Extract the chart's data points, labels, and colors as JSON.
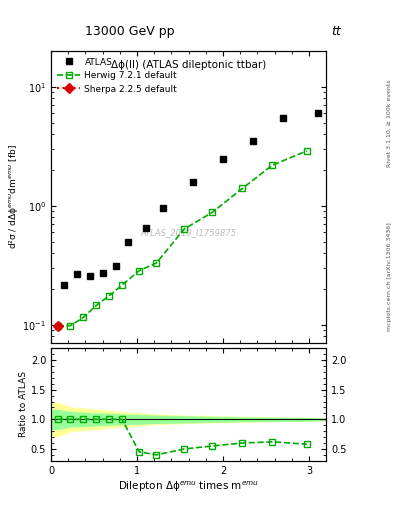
{
  "title_top": "13000 GeV pp",
  "title_top_right": "tt",
  "plot_title": "Δϕ(ll) (ATLAS dileptonic ttbar)",
  "watermark": "ATLAS_2019_I1759875",
  "right_label_top": "Rivet 3.1.10, ≥ 100k events",
  "right_label_bottom": "mcplots.cern.ch [arXiv:1306.3436]",
  "ylabel_main": "d²σ / dΔϕ dm [fb]",
  "ylabel_ratio": "Ratio to ATLAS",
  "xlabel": "Dilepton Δϕ times m",
  "atlas_x": [
    0.15,
    0.3,
    0.45,
    0.6,
    0.75,
    0.9,
    1.1,
    1.3,
    1.65,
    2.0,
    2.35,
    2.7,
    3.1
  ],
  "atlas_y": [
    0.215,
    0.265,
    0.255,
    0.27,
    0.31,
    0.5,
    0.65,
    0.95,
    1.6,
    2.5,
    3.5,
    5.5,
    6.0
  ],
  "herwig_x": [
    0.075,
    0.225,
    0.375,
    0.525,
    0.675,
    0.825,
    1.025,
    1.225,
    1.55,
    1.875,
    2.225,
    2.575,
    2.975
  ],
  "herwig_y": [
    0.098,
    0.098,
    0.115,
    0.145,
    0.175,
    0.215,
    0.285,
    0.33,
    0.64,
    0.88,
    1.4,
    2.2,
    2.9
  ],
  "sherpa_x": [
    0.075
  ],
  "sherpa_y": [
    0.098
  ],
  "ratio_herwig_x": [
    0.075,
    0.225,
    0.375,
    0.525,
    0.675,
    0.825,
    1.025,
    1.225,
    1.55,
    1.875,
    2.225,
    2.575,
    2.975
  ],
  "ratio_herwig_y": [
    1.0,
    1.0,
    1.0,
    1.0,
    1.0,
    1.0,
    0.45,
    0.4,
    0.5,
    0.55,
    0.6,
    0.62,
    0.58
  ],
  "band_yellow_x": [
    0.0,
    0.075,
    0.225,
    0.375,
    0.525,
    0.675,
    0.825,
    1.025,
    1.225,
    1.55,
    1.875,
    2.225,
    2.575,
    2.975,
    3.2
  ],
  "band_yellow_lo": [
    0.72,
    0.72,
    0.8,
    0.82,
    0.84,
    0.86,
    0.88,
    0.9,
    0.92,
    0.94,
    0.95,
    0.96,
    0.97,
    0.98,
    0.99
  ],
  "band_yellow_hi": [
    1.28,
    1.28,
    1.2,
    1.18,
    1.16,
    1.14,
    1.12,
    1.1,
    1.08,
    1.06,
    1.05,
    1.04,
    1.03,
    1.02,
    1.01
  ],
  "band_green_x": [
    0.0,
    0.075,
    0.225,
    0.375,
    0.525,
    0.675,
    0.825,
    1.025,
    1.225,
    1.55,
    1.875,
    2.225,
    2.575,
    2.975,
    3.2
  ],
  "band_green_lo": [
    0.84,
    0.84,
    0.88,
    0.89,
    0.9,
    0.91,
    0.92,
    0.93,
    0.94,
    0.95,
    0.96,
    0.97,
    0.975,
    0.98,
    0.99
  ],
  "band_green_hi": [
    1.16,
    1.16,
    1.12,
    1.11,
    1.1,
    1.09,
    1.08,
    1.07,
    1.06,
    1.05,
    1.04,
    1.03,
    1.025,
    1.02,
    1.01
  ],
  "xlim": [
    0.0,
    3.2
  ],
  "ylim_main_log": [
    0.07,
    20
  ],
  "ylim_ratio": [
    0.3,
    2.2
  ],
  "color_atlas": "#000000",
  "color_herwig": "#00aa00",
  "color_sherpa": "#dd0000",
  "color_yellow_band": "#ffff99",
  "color_green_band": "#99ff99",
  "bg_color": "#ffffff"
}
